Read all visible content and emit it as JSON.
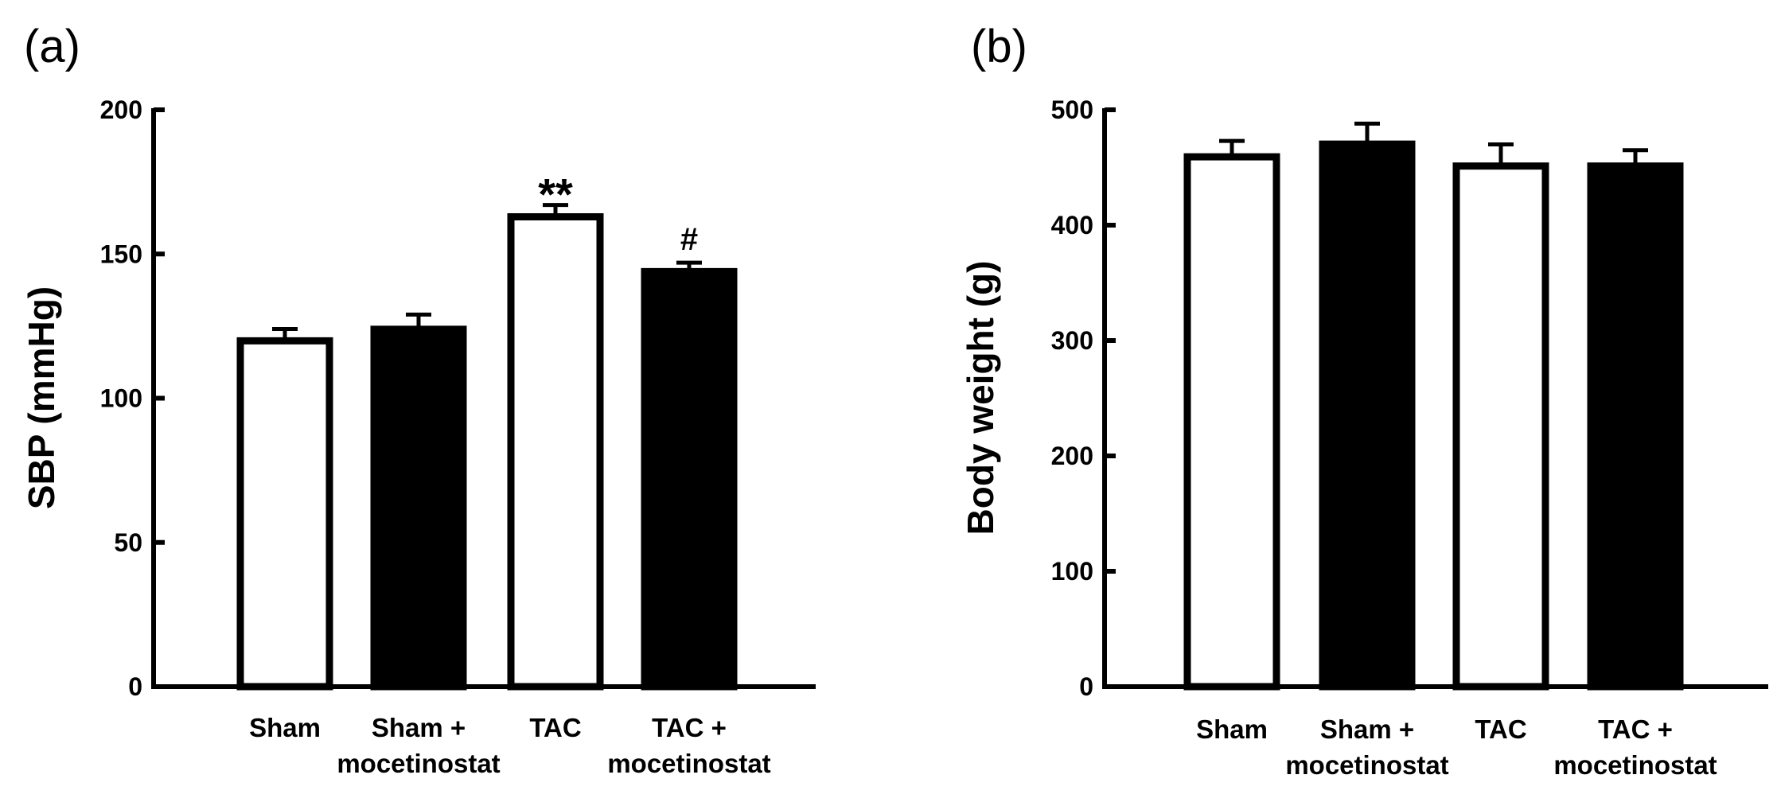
{
  "chart_data": [
    {
      "panel_label": "(a)",
      "type": "bar",
      "categories": [
        [
          "Sham"
        ],
        [
          "Sham +",
          "mocetinostat"
        ],
        [
          "TAC"
        ],
        [
          "TAC +",
          "mocetinostat"
        ]
      ],
      "values": [
        121,
        125,
        164,
        145
      ],
      "errors": [
        3,
        4,
        3,
        2
      ],
      "fills": [
        "#ffffff",
        "#000000",
        "#ffffff",
        "#000000"
      ],
      "annotations": [
        "",
        "",
        "**",
        "#"
      ],
      "ylabel": "SBP (mmHg)",
      "xlabel": "",
      "ylim": [
        0,
        200
      ],
      "yticks": [
        0,
        50,
        100,
        150,
        200
      ],
      "grid": false
    },
    {
      "panel_label": "(b)",
      "type": "bar",
      "categories": [
        [
          "Sham"
        ],
        [
          "Sham +",
          "mocetinostat"
        ],
        [
          "TAC"
        ],
        [
          "TAC +",
          "mocetinostat"
        ]
      ],
      "values": [
        462,
        473,
        454,
        454
      ],
      "errors": [
        11,
        15,
        16,
        11
      ],
      "fills": [
        "#ffffff",
        "#000000",
        "#ffffff",
        "#000000"
      ],
      "annotations": [
        "",
        "",
        "",
        ""
      ],
      "ylabel": "Body weight (g)",
      "xlabel": "",
      "ylim": [
        0,
        500
      ],
      "yticks": [
        0,
        100,
        200,
        300,
        400,
        500
      ],
      "grid": false
    }
  ]
}
